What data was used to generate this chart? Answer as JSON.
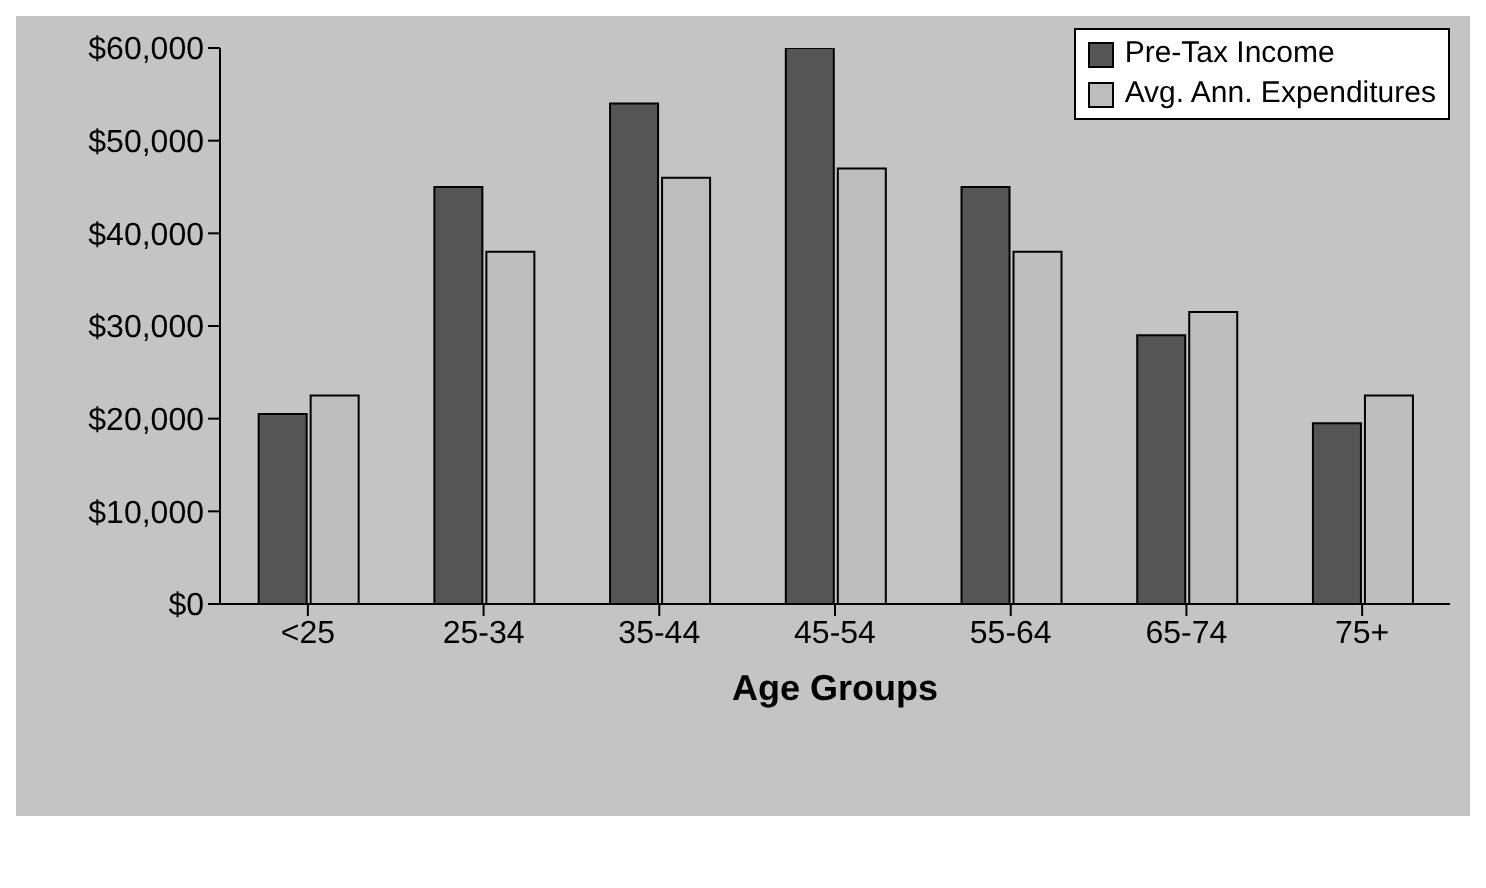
{
  "chart_data": {
    "type": "bar",
    "xlabel": "Age Groups",
    "categories": [
      "<25",
      "25-34",
      "35-44",
      "45-54",
      "55-64",
      "65-74",
      "75+"
    ],
    "series": [
      {
        "name": "Pre-Tax Income",
        "color": "#555555",
        "values": [
          20500,
          45000,
          54000,
          60000,
          45000,
          29000,
          19500
        ]
      },
      {
        "name": "Avg. Ann. Expenditures",
        "color": "#bdbdbd",
        "values": [
          22500,
          38000,
          46000,
          47000,
          38000,
          31500,
          22500
        ]
      }
    ],
    "ylim": [
      0,
      60000
    ],
    "yticks": [
      {
        "value": 0,
        "label": "$0"
      },
      {
        "value": 10000,
        "label": "$10,000"
      },
      {
        "value": 20000,
        "label": "$20,000"
      },
      {
        "value": 30000,
        "label": "$30,000"
      },
      {
        "value": 40000,
        "label": "$40,000"
      },
      {
        "value": 50000,
        "label": "$50,000"
      },
      {
        "value": 60000,
        "label": "$60,000"
      }
    ],
    "grid": false,
    "legend": "top right"
  }
}
